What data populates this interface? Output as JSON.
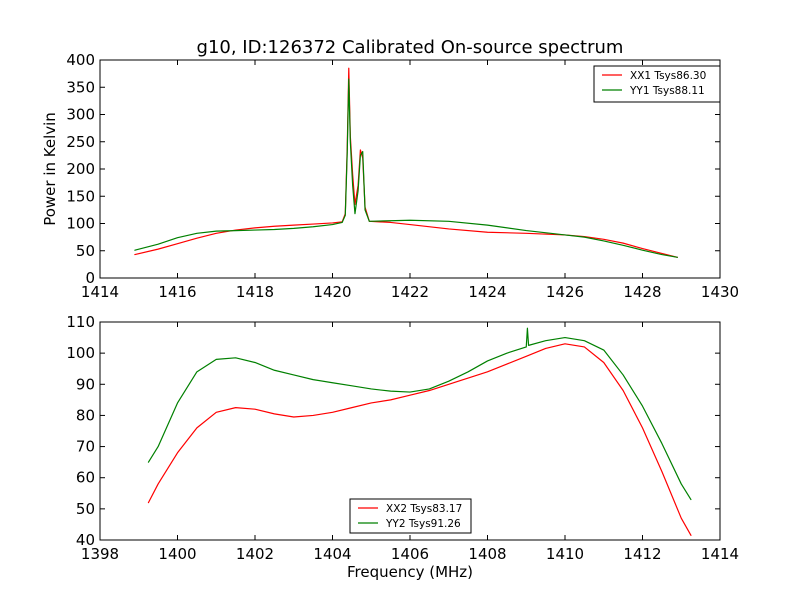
{
  "chart_data": [
    {
      "type": "line",
      "title": "g10, ID:126372 Calibrated On-source spectrum",
      "xlabel": "",
      "ylabel": "Power in Kelvin",
      "xlim": [
        1414,
        1430
      ],
      "ylim": [
        0,
        400
      ],
      "xticks": [
        1414,
        1416,
        1418,
        1420,
        1422,
        1424,
        1426,
        1428,
        1430
      ],
      "yticks": [
        0,
        50,
        100,
        150,
        200,
        250,
        300,
        350,
        400
      ],
      "grid": false,
      "legend_position": "top-right",
      "series": [
        {
          "name": "XX1 Tsys86.30",
          "color": "#ff0000",
          "points": [
            [
              1414.9,
              43
            ],
            [
              1415.5,
              53
            ],
            [
              1416.0,
              63
            ],
            [
              1416.5,
              73
            ],
            [
              1417.0,
              82
            ],
            [
              1417.5,
              88
            ],
            [
              1418.0,
              92
            ],
            [
              1418.5,
              95
            ],
            [
              1419.0,
              97
            ],
            [
              1419.5,
              99
            ],
            [
              1420.0,
              101
            ],
            [
              1420.25,
              103
            ],
            [
              1420.33,
              118
            ],
            [
              1420.38,
              240
            ],
            [
              1420.42,
              385
            ],
            [
              1420.46,
              260
            ],
            [
              1420.52,
              190
            ],
            [
              1420.58,
              135
            ],
            [
              1420.66,
              170
            ],
            [
              1420.72,
              235
            ],
            [
              1420.78,
              220
            ],
            [
              1420.84,
              130
            ],
            [
              1420.95,
              104
            ],
            [
              1421.5,
              102
            ],
            [
              1422.0,
              98
            ],
            [
              1423.0,
              90
            ],
            [
              1424.0,
              84
            ],
            [
              1425.0,
              82
            ],
            [
              1426.0,
              79
            ],
            [
              1426.5,
              76
            ],
            [
              1427.0,
              71
            ],
            [
              1427.5,
              64
            ],
            [
              1428.0,
              54
            ],
            [
              1428.5,
              45
            ],
            [
              1428.9,
              38
            ]
          ]
        },
        {
          "name": "YY1 Tsys88.11",
          "color": "#008000",
          "points": [
            [
              1414.9,
              51
            ],
            [
              1415.5,
              62
            ],
            [
              1416.0,
              74
            ],
            [
              1416.5,
              82
            ],
            [
              1417.0,
              86
            ],
            [
              1417.5,
              87
            ],
            [
              1418.0,
              88
            ],
            [
              1418.5,
              89
            ],
            [
              1419.0,
              91
            ],
            [
              1419.5,
              94
            ],
            [
              1420.0,
              98
            ],
            [
              1420.25,
              102
            ],
            [
              1420.33,
              115
            ],
            [
              1420.38,
              230
            ],
            [
              1420.42,
              365
            ],
            [
              1420.46,
              250
            ],
            [
              1420.52,
              170
            ],
            [
              1420.58,
              118
            ],
            [
              1420.66,
              160
            ],
            [
              1420.72,
              225
            ],
            [
              1420.78,
              232
            ],
            [
              1420.84,
              125
            ],
            [
              1420.95,
              104
            ],
            [
              1421.5,
              105
            ],
            [
              1422.0,
              106
            ],
            [
              1423.0,
              104
            ],
            [
              1424.0,
              97
            ],
            [
              1425.0,
              87
            ],
            [
              1426.0,
              79
            ],
            [
              1426.5,
              75
            ],
            [
              1427.0,
              68
            ],
            [
              1427.5,
              60
            ],
            [
              1428.0,
              51
            ],
            [
              1428.5,
              43
            ],
            [
              1428.9,
              38
            ]
          ]
        }
      ]
    },
    {
      "type": "line",
      "title": "",
      "xlabel": "Frequency (MHz)",
      "ylabel": "",
      "xlim": [
        1398,
        1414
      ],
      "ylim": [
        40,
        110
      ],
      "xticks": [
        1398,
        1400,
        1402,
        1404,
        1406,
        1408,
        1410,
        1412,
        1414
      ],
      "yticks": [
        40,
        50,
        60,
        70,
        80,
        90,
        100,
        110
      ],
      "grid": false,
      "legend_position": "bottom-center",
      "series": [
        {
          "name": "XX2 Tsys83.17",
          "color": "#ff0000",
          "points": [
            [
              1399.25,
              52
            ],
            [
              1399.5,
              58
            ],
            [
              1400.0,
              68
            ],
            [
              1400.5,
              76
            ],
            [
              1401.0,
              81
            ],
            [
              1401.5,
              82.5
            ],
            [
              1402.0,
              82
            ],
            [
              1402.5,
              80.5
            ],
            [
              1403.0,
              79.5
            ],
            [
              1403.5,
              80
            ],
            [
              1404.0,
              81
            ],
            [
              1404.5,
              82.5
            ],
            [
              1405.0,
              84
            ],
            [
              1405.5,
              85
            ],
            [
              1406.0,
              86.5
            ],
            [
              1406.5,
              88
            ],
            [
              1407.0,
              90
            ],
            [
              1407.5,
              92
            ],
            [
              1408.0,
              94
            ],
            [
              1408.5,
              96.5
            ],
            [
              1409.0,
              99
            ],
            [
              1409.5,
              101.5
            ],
            [
              1410.0,
              103
            ],
            [
              1410.5,
              102
            ],
            [
              1411.0,
              97
            ],
            [
              1411.5,
              88
            ],
            [
              1412.0,
              76
            ],
            [
              1412.5,
              62
            ],
            [
              1413.0,
              47
            ],
            [
              1413.25,
              41.5
            ]
          ]
        },
        {
          "name": "YY2 Tsys91.26",
          "color": "#008000",
          "points": [
            [
              1399.25,
              65
            ],
            [
              1399.5,
              70
            ],
            [
              1400.0,
              84
            ],
            [
              1400.5,
              94
            ],
            [
              1401.0,
              98
            ],
            [
              1401.5,
              98.5
            ],
            [
              1402.0,
              97
            ],
            [
              1402.5,
              94.5
            ],
            [
              1403.0,
              93
            ],
            [
              1403.5,
              91.5
            ],
            [
              1404.0,
              90.5
            ],
            [
              1404.5,
              89.5
            ],
            [
              1405.0,
              88.5
            ],
            [
              1405.5,
              87.8
            ],
            [
              1406.0,
              87.5
            ],
            [
              1406.5,
              88.5
            ],
            [
              1407.0,
              91
            ],
            [
              1407.5,
              94
            ],
            [
              1408.0,
              97.5
            ],
            [
              1408.5,
              100
            ],
            [
              1409.0,
              102
            ],
            [
              1409.03,
              108
            ],
            [
              1409.06,
              102.5
            ],
            [
              1409.5,
              104
            ],
            [
              1410.0,
              105
            ],
            [
              1410.5,
              104
            ],
            [
              1411.0,
              101
            ],
            [
              1411.5,
              93
            ],
            [
              1412.0,
              83
            ],
            [
              1412.5,
              71
            ],
            [
              1413.0,
              58
            ],
            [
              1413.25,
              53
            ]
          ]
        }
      ]
    }
  ]
}
